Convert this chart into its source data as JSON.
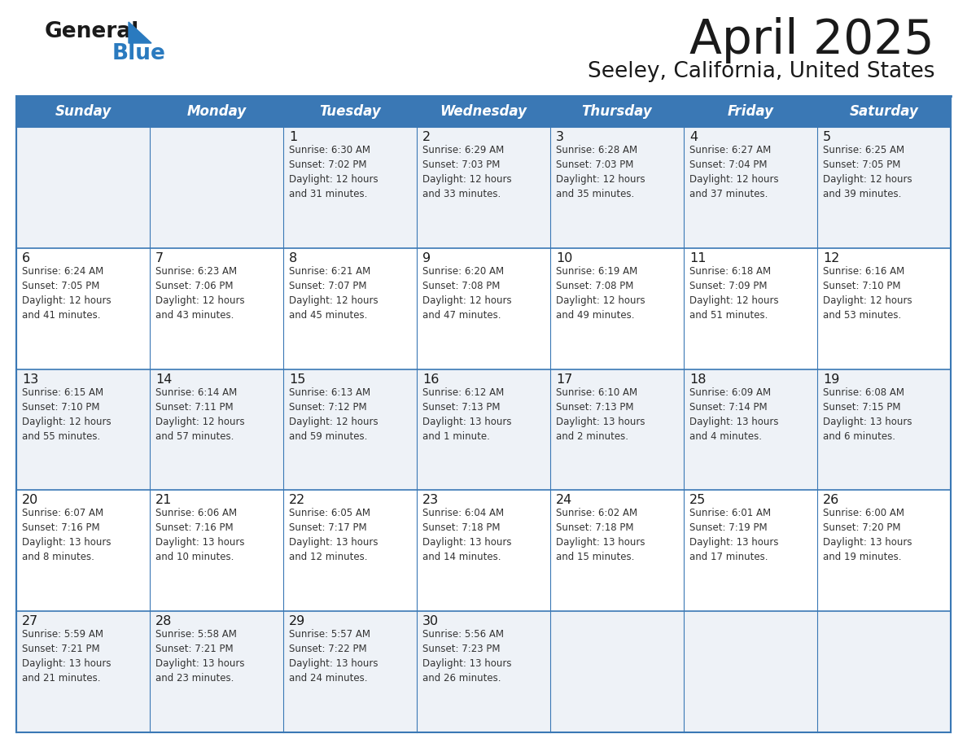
{
  "title": "April 2025",
  "subtitle": "Seeley, California, United States",
  "days_of_week": [
    "Sunday",
    "Monday",
    "Tuesday",
    "Wednesday",
    "Thursday",
    "Friday",
    "Saturday"
  ],
  "header_bg": "#3a78b5",
  "header_text": "#ffffff",
  "row_odd_bg": "#eef2f7",
  "row_even_bg": "#ffffff",
  "border_blue": "#3a78b5",
  "divider_blue": "#3a78b5",
  "day_num_color": "#1a1a1a",
  "cell_text_color": "#333333",
  "title_color": "#1a1a1a",
  "subtitle_color": "#1a1a1a",
  "logo_text_color": "#1a1a1a",
  "logo_blue_color": "#2a7abf",
  "weeks": [
    [
      {
        "day": "",
        "info": ""
      },
      {
        "day": "",
        "info": ""
      },
      {
        "day": "1",
        "info": "Sunrise: 6:30 AM\nSunset: 7:02 PM\nDaylight: 12 hours\nand 31 minutes."
      },
      {
        "day": "2",
        "info": "Sunrise: 6:29 AM\nSunset: 7:03 PM\nDaylight: 12 hours\nand 33 minutes."
      },
      {
        "day": "3",
        "info": "Sunrise: 6:28 AM\nSunset: 7:03 PM\nDaylight: 12 hours\nand 35 minutes."
      },
      {
        "day": "4",
        "info": "Sunrise: 6:27 AM\nSunset: 7:04 PM\nDaylight: 12 hours\nand 37 minutes."
      },
      {
        "day": "5",
        "info": "Sunrise: 6:25 AM\nSunset: 7:05 PM\nDaylight: 12 hours\nand 39 minutes."
      }
    ],
    [
      {
        "day": "6",
        "info": "Sunrise: 6:24 AM\nSunset: 7:05 PM\nDaylight: 12 hours\nand 41 minutes."
      },
      {
        "day": "7",
        "info": "Sunrise: 6:23 AM\nSunset: 7:06 PM\nDaylight: 12 hours\nand 43 minutes."
      },
      {
        "day": "8",
        "info": "Sunrise: 6:21 AM\nSunset: 7:07 PM\nDaylight: 12 hours\nand 45 minutes."
      },
      {
        "day": "9",
        "info": "Sunrise: 6:20 AM\nSunset: 7:08 PM\nDaylight: 12 hours\nand 47 minutes."
      },
      {
        "day": "10",
        "info": "Sunrise: 6:19 AM\nSunset: 7:08 PM\nDaylight: 12 hours\nand 49 minutes."
      },
      {
        "day": "11",
        "info": "Sunrise: 6:18 AM\nSunset: 7:09 PM\nDaylight: 12 hours\nand 51 minutes."
      },
      {
        "day": "12",
        "info": "Sunrise: 6:16 AM\nSunset: 7:10 PM\nDaylight: 12 hours\nand 53 minutes."
      }
    ],
    [
      {
        "day": "13",
        "info": "Sunrise: 6:15 AM\nSunset: 7:10 PM\nDaylight: 12 hours\nand 55 minutes."
      },
      {
        "day": "14",
        "info": "Sunrise: 6:14 AM\nSunset: 7:11 PM\nDaylight: 12 hours\nand 57 minutes."
      },
      {
        "day": "15",
        "info": "Sunrise: 6:13 AM\nSunset: 7:12 PM\nDaylight: 12 hours\nand 59 minutes."
      },
      {
        "day": "16",
        "info": "Sunrise: 6:12 AM\nSunset: 7:13 PM\nDaylight: 13 hours\nand 1 minute."
      },
      {
        "day": "17",
        "info": "Sunrise: 6:10 AM\nSunset: 7:13 PM\nDaylight: 13 hours\nand 2 minutes."
      },
      {
        "day": "18",
        "info": "Sunrise: 6:09 AM\nSunset: 7:14 PM\nDaylight: 13 hours\nand 4 minutes."
      },
      {
        "day": "19",
        "info": "Sunrise: 6:08 AM\nSunset: 7:15 PM\nDaylight: 13 hours\nand 6 minutes."
      }
    ],
    [
      {
        "day": "20",
        "info": "Sunrise: 6:07 AM\nSunset: 7:16 PM\nDaylight: 13 hours\nand 8 minutes."
      },
      {
        "day": "21",
        "info": "Sunrise: 6:06 AM\nSunset: 7:16 PM\nDaylight: 13 hours\nand 10 minutes."
      },
      {
        "day": "22",
        "info": "Sunrise: 6:05 AM\nSunset: 7:17 PM\nDaylight: 13 hours\nand 12 minutes."
      },
      {
        "day": "23",
        "info": "Sunrise: 6:04 AM\nSunset: 7:18 PM\nDaylight: 13 hours\nand 14 minutes."
      },
      {
        "day": "24",
        "info": "Sunrise: 6:02 AM\nSunset: 7:18 PM\nDaylight: 13 hours\nand 15 minutes."
      },
      {
        "day": "25",
        "info": "Sunrise: 6:01 AM\nSunset: 7:19 PM\nDaylight: 13 hours\nand 17 minutes."
      },
      {
        "day": "26",
        "info": "Sunrise: 6:00 AM\nSunset: 7:20 PM\nDaylight: 13 hours\nand 19 minutes."
      }
    ],
    [
      {
        "day": "27",
        "info": "Sunrise: 5:59 AM\nSunset: 7:21 PM\nDaylight: 13 hours\nand 21 minutes."
      },
      {
        "day": "28",
        "info": "Sunrise: 5:58 AM\nSunset: 7:21 PM\nDaylight: 13 hours\nand 23 minutes."
      },
      {
        "day": "29",
        "info": "Sunrise: 5:57 AM\nSunset: 7:22 PM\nDaylight: 13 hours\nand 24 minutes."
      },
      {
        "day": "30",
        "info": "Sunrise: 5:56 AM\nSunset: 7:23 PM\nDaylight: 13 hours\nand 26 minutes."
      },
      {
        "day": "",
        "info": ""
      },
      {
        "day": "",
        "info": ""
      },
      {
        "day": "",
        "info": ""
      }
    ]
  ]
}
